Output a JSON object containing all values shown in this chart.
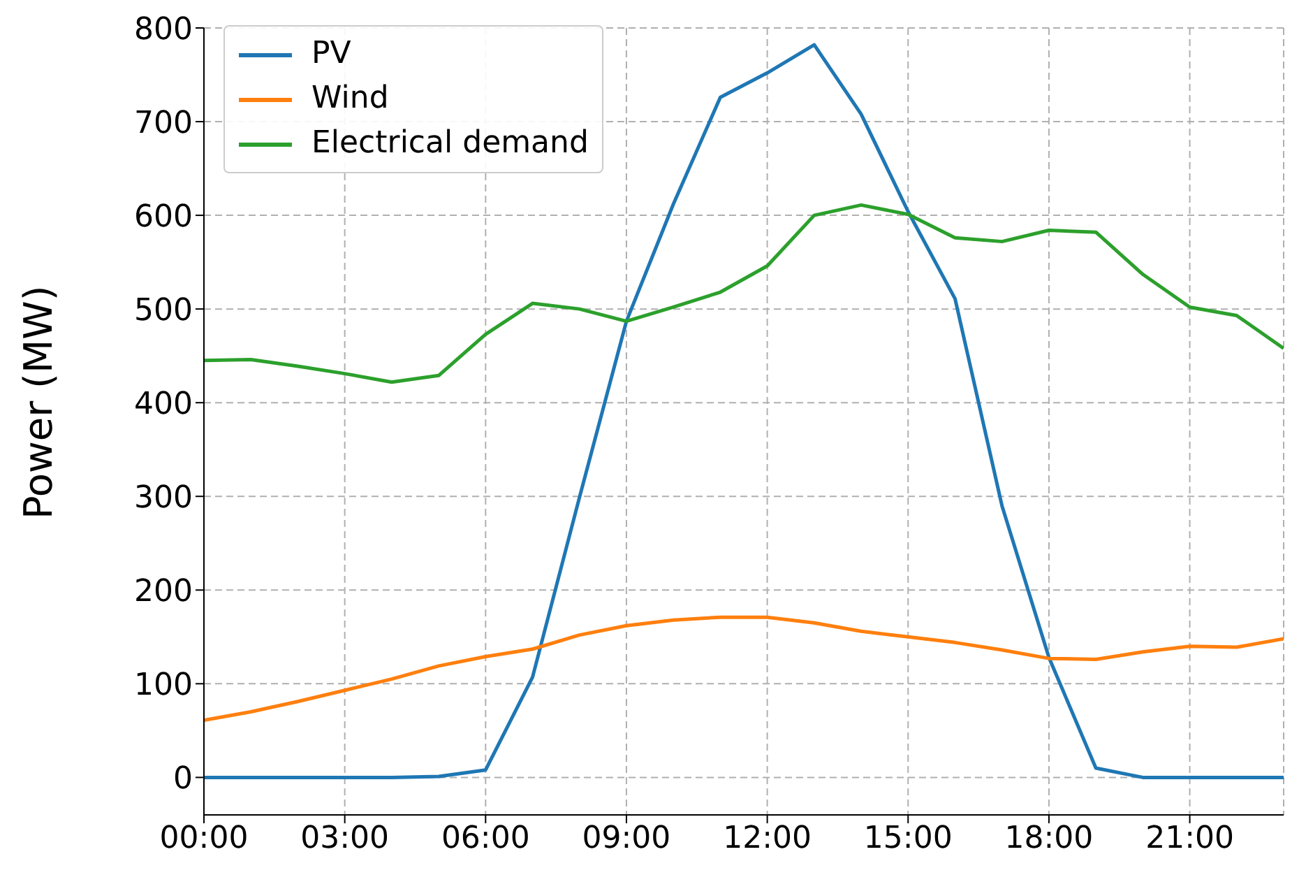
{
  "chart_data": {
    "type": "line",
    "ylabel": "Power (MW)",
    "x": [
      0,
      1,
      2,
      3,
      4,
      5,
      6,
      7,
      8,
      9,
      10,
      11,
      12,
      13,
      14,
      15,
      16,
      17,
      18,
      19,
      20,
      21,
      22,
      23
    ],
    "series": [
      {
        "name": "PV",
        "color": "#1f77b4",
        "values": [
          0,
          0,
          0,
          0,
          0,
          1,
          8,
          107,
          299,
          487,
          612,
          726,
          752,
          782,
          708,
          604,
          511,
          290,
          128,
          10,
          0,
          0,
          0,
          0
        ]
      },
      {
        "name": "Wind",
        "color": "#ff7f0e",
        "values": [
          61,
          70,
          81,
          93,
          105,
          119,
          129,
          137,
          152,
          162,
          168,
          171,
          171,
          165,
          156,
          150,
          144,
          136,
          127,
          126,
          134,
          140,
          139,
          148
        ]
      },
      {
        "name": "Electrical demand",
        "color": "#2ca02c",
        "values": [
          445,
          446,
          439,
          431,
          422,
          429,
          473,
          506,
          500,
          487,
          502,
          518,
          546,
          600,
          611,
          601,
          576,
          572,
          584,
          582,
          537,
          502,
          493,
          458
        ]
      }
    ],
    "xlim": [
      0,
      23
    ],
    "xticks": [
      {
        "value": 0,
        "label": "00:00"
      },
      {
        "value": 3,
        "label": "03:00"
      },
      {
        "value": 6,
        "label": "06:00"
      },
      {
        "value": 9,
        "label": "09:00"
      },
      {
        "value": 12,
        "label": "12:00"
      },
      {
        "value": 15,
        "label": "15:00"
      },
      {
        "value": 18,
        "label": "18:00"
      },
      {
        "value": 21,
        "label": "21:00"
      }
    ],
    "ylim": [
      -40,
      800
    ],
    "yticks": [
      0,
      100,
      200,
      300,
      400,
      500,
      600,
      700,
      800
    ],
    "grid": true,
    "legend": "top left",
    "line_style": "solid"
  }
}
